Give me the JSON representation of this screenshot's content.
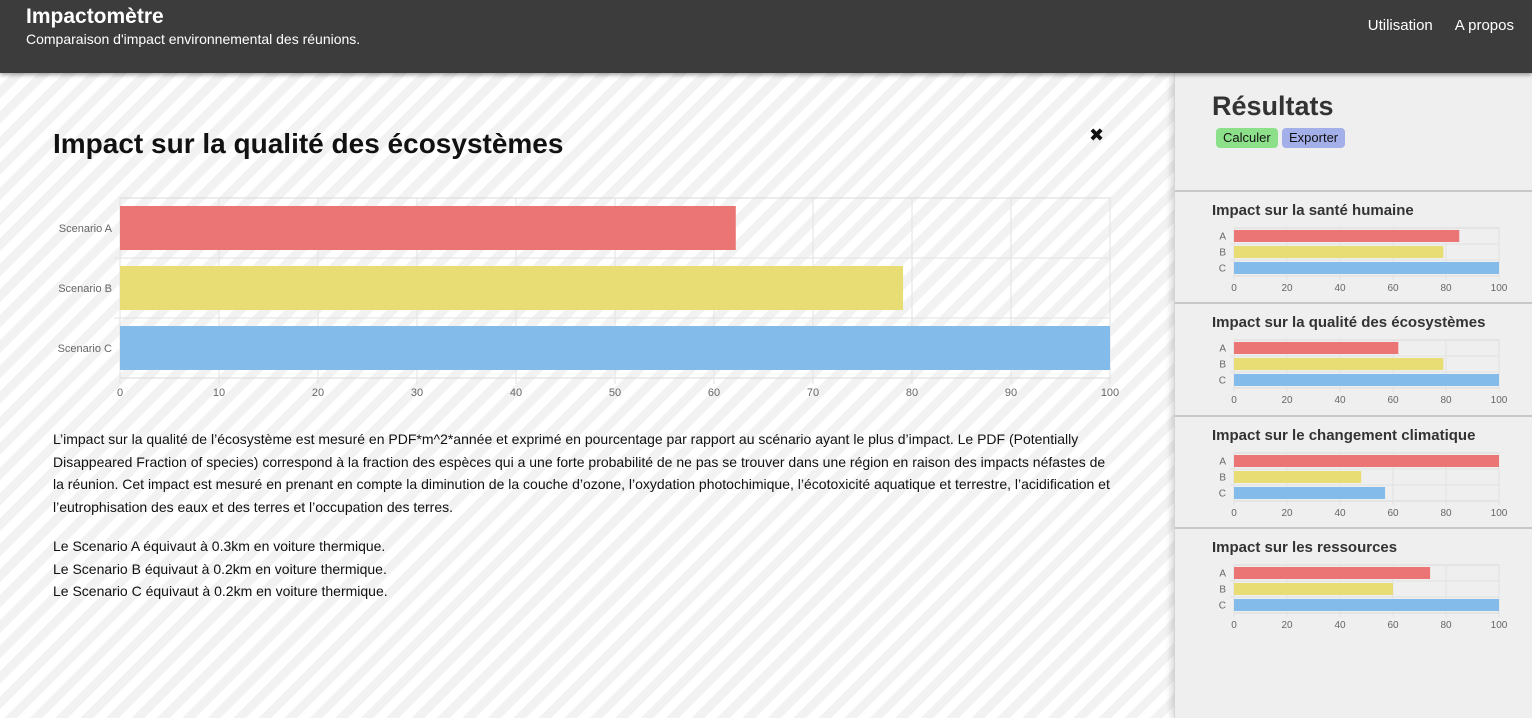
{
  "header": {
    "title": "Impactomètre",
    "subtitle": "Comparaison d'impact environnemental des réunions.",
    "nav": [
      "Utilisation",
      "A propos"
    ]
  },
  "main": {
    "title": "Impact sur la qualité des écosystèmes",
    "close_icon": "✖",
    "description": "L’impact sur la qualité de l’écosystème est mesuré en PDF*m^2*année et exprimé en pourcentage par rapport au scénario ayant le plus d’impact. Le PDF (Potentially Disappeared Fraction of species) correspond à la fraction des espèces qui a une forte probabilité de ne pas se trouver dans une région en raison des impacts néfastes de la réunion. Cet impact est mesuré en prenant en compte la diminution de la couche d’ozone, l’oxydation photochimique, l’écotoxicité aquatique et terrestre, l’acidification et l’eutrophisation des eaux et des terres et l’occupation des terres.",
    "equivalents": [
      "Le Scenario A équivaut à 0.3km en voiture thermique.",
      "Le Scenario B équivaut à 0.2km en voiture thermique.",
      "Le Scenario C équivaut à 0.2km en voiture thermique."
    ]
  },
  "sidebar": {
    "title": "Résultats",
    "calculate_label": "Calculer",
    "export_label": "Exporter"
  },
  "colors": {
    "A": "#eb7474",
    "B": "#e8dc75",
    "C": "#83bbea"
  },
  "chart_data": [
    {
      "type": "bar",
      "title": "Impact sur la qualité des écosystèmes",
      "categories": [
        "Scenario A",
        "Scenario B",
        "Scenario C"
      ],
      "values": [
        62.2,
        79.1,
        100
      ],
      "xlim": [
        0,
        100
      ],
      "ticks": [
        0,
        10,
        20,
        30,
        40,
        50,
        60,
        70,
        80,
        90,
        100
      ],
      "orientation": "horizontal",
      "grid": true
    },
    {
      "type": "bar",
      "title": "Impact sur la santé humaine",
      "categories": [
        "A",
        "B",
        "C"
      ],
      "values": [
        85,
        79,
        100
      ],
      "xlim": [
        0,
        100
      ],
      "ticks": [
        0,
        20,
        40,
        60,
        80,
        100
      ],
      "orientation": "horizontal",
      "grid": true
    },
    {
      "type": "bar",
      "title": "Impact sur la qualité des écosystèmes",
      "categories": [
        "A",
        "B",
        "C"
      ],
      "values": [
        62,
        79,
        100
      ],
      "xlim": [
        0,
        100
      ],
      "ticks": [
        0,
        20,
        40,
        60,
        80,
        100
      ],
      "orientation": "horizontal",
      "grid": true
    },
    {
      "type": "bar",
      "title": "Impact sur le changement climatique",
      "categories": [
        "A",
        "B",
        "C"
      ],
      "values": [
        100,
        48,
        57
      ],
      "xlim": [
        0,
        100
      ],
      "ticks": [
        0,
        20,
        40,
        60,
        80,
        100
      ],
      "orientation": "horizontal",
      "grid": true
    },
    {
      "type": "bar",
      "title": "Impact sur les ressources",
      "categories": [
        "A",
        "B",
        "C"
      ],
      "values": [
        74,
        60,
        100
      ],
      "xlim": [
        0,
        100
      ],
      "ticks": [
        0,
        20,
        40,
        60,
        80,
        100
      ],
      "orientation": "horizontal",
      "grid": true
    }
  ]
}
